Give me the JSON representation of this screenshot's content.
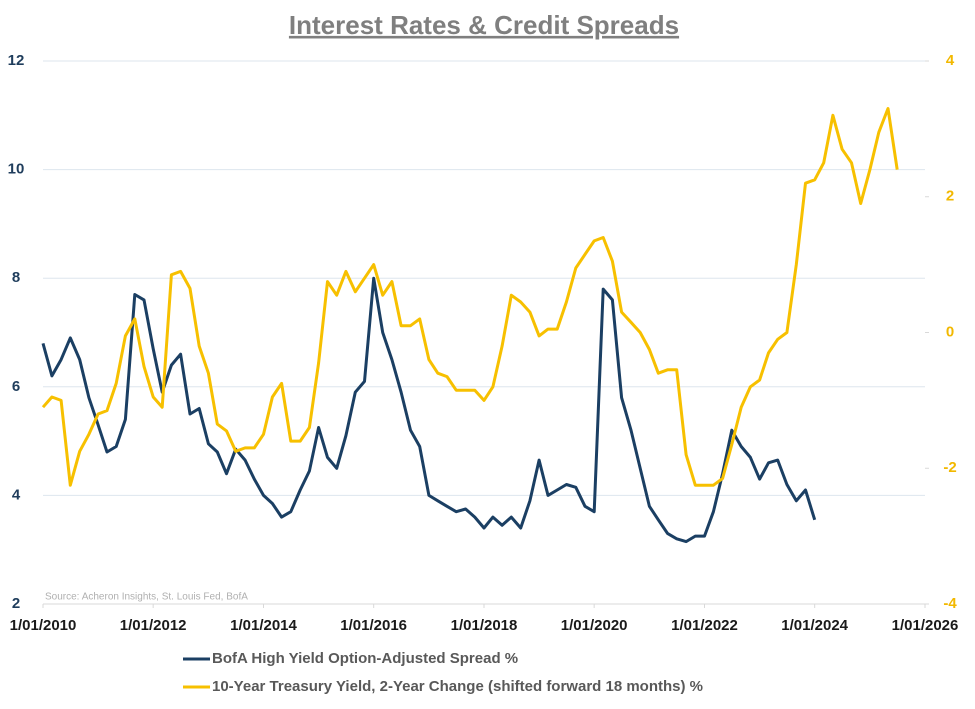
{
  "chart_data": {
    "type": "line",
    "title": "Interest Rates & Credit Spreads",
    "annotation": "Source: Acheron Insights, St. Louis Fed, BofA",
    "x": [
      "2010-01-01",
      "2010-03-01",
      "2010-05-01",
      "2010-07-01",
      "2010-09-01",
      "2010-11-01",
      "2011-01-01",
      "2011-03-01",
      "2011-05-01",
      "2011-07-01",
      "2011-09-01",
      "2011-11-01",
      "2012-01-01",
      "2012-03-01",
      "2012-05-01",
      "2012-07-01",
      "2012-09-01",
      "2012-11-01",
      "2013-01-01",
      "2013-03-01",
      "2013-05-01",
      "2013-07-01",
      "2013-09-01",
      "2013-11-01",
      "2014-01-01",
      "2014-03-01",
      "2014-05-01",
      "2014-07-01",
      "2014-09-01",
      "2014-11-01",
      "2015-01-01",
      "2015-03-01",
      "2015-05-01",
      "2015-07-01",
      "2015-09-01",
      "2015-11-01",
      "2016-01-01",
      "2016-03-01",
      "2016-05-01",
      "2016-07-01",
      "2016-09-01",
      "2016-11-01",
      "2017-01-01",
      "2017-03-01",
      "2017-05-01",
      "2017-07-01",
      "2017-09-01",
      "2017-11-01",
      "2018-01-01",
      "2018-03-01",
      "2018-05-01",
      "2018-07-01",
      "2018-09-01",
      "2018-11-01",
      "2019-01-01",
      "2019-03-01",
      "2019-05-01",
      "2019-07-01",
      "2019-09-01",
      "2019-11-01",
      "2020-01-01",
      "2020-03-01",
      "2020-05-01",
      "2020-07-01",
      "2020-09-01",
      "2020-11-01",
      "2021-01-01",
      "2021-03-01",
      "2021-05-01",
      "2021-07-01",
      "2021-09-01",
      "2021-11-01",
      "2022-01-01",
      "2022-03-01",
      "2022-05-01",
      "2022-07-01",
      "2022-09-01",
      "2022-11-01",
      "2023-01-01",
      "2023-03-01",
      "2023-05-01",
      "2023-07-01",
      "2023-09-01",
      "2023-11-01",
      "2024-01-01",
      "2024-03-01",
      "2024-05-01",
      "2024-07-01",
      "2024-09-01",
      "2024-11-01",
      "2025-01-01",
      "2025-03-01",
      "2025-05-01",
      "2025-07-01"
    ],
    "series": [
      {
        "name": "BofA High Yield Option-Adjusted Spread %",
        "color": "#1b3f63",
        "axis": "y",
        "values": [
          6.8,
          6.2,
          6.5,
          6.9,
          6.5,
          5.8,
          5.3,
          4.8,
          4.9,
          5.4,
          7.7,
          7.6,
          6.7,
          5.9,
          6.4,
          6.6,
          5.5,
          5.6,
          4.95,
          4.8,
          4.4,
          4.85,
          4.65,
          4.3,
          4.0,
          3.85,
          3.6,
          3.7,
          4.1,
          4.45,
          5.25,
          4.7,
          4.5,
          5.1,
          5.9,
          6.1,
          8.0,
          7.0,
          6.5,
          5.9,
          5.2,
          4.9,
          4.0,
          3.9,
          3.8,
          3.7,
          3.75,
          3.6,
          3.4,
          3.6,
          3.45,
          3.6,
          3.4,
          3.9,
          4.65,
          4.0,
          4.1,
          4.2,
          4.15,
          3.8,
          3.7,
          7.8,
          7.6,
          5.8,
          5.2,
          4.5,
          3.8,
          3.55,
          3.3,
          3.2,
          3.15,
          3.25,
          3.25,
          3.7,
          4.4,
          5.2,
          4.9,
          4.7,
          4.3,
          4.6,
          4.65,
          4.2,
          3.9,
          4.1,
          3.55,
          null,
          null,
          null,
          null,
          null,
          null,
          null,
          null,
          null
        ]
      },
      {
        "name": "10-Year Treasury Yield, 2-Year Change (shifted forward 18 months) %",
        "color": "#f7c000",
        "axis": "y2",
        "values": [
          -1.1,
          -0.95,
          -1.0,
          -2.25,
          -1.75,
          -1.5,
          -1.2,
          -1.15,
          -0.75,
          -0.05,
          0.2,
          -0.5,
          -0.95,
          -1.1,
          0.85,
          0.9,
          0.65,
          -0.2,
          -0.6,
          -1.35,
          -1.45,
          -1.75,
          -1.7,
          -1.7,
          -1.5,
          -0.95,
          -0.75,
          -1.6,
          -1.6,
          -1.4,
          -0.45,
          0.75,
          0.55,
          0.9,
          0.6,
          0.8,
          1.0,
          0.55,
          0.75,
          0.1,
          0.1,
          0.2,
          -0.4,
          -0.6,
          -0.65,
          -0.85,
          -0.85,
          -0.85,
          -1.0,
          -0.8,
          -0.2,
          0.55,
          0.45,
          0.3,
          -0.05,
          0.05,
          0.05,
          0.45,
          0.95,
          1.15,
          1.35,
          1.4,
          1.05,
          0.3,
          0.15,
          0.0,
          -0.25,
          -0.6,
          -0.55,
          -0.55,
          -1.8,
          -2.25,
          -2.25,
          -2.25,
          -2.15,
          -1.65,
          -1.1,
          -0.8,
          -0.7,
          -0.3,
          -0.1,
          0.0,
          1.0,
          2.2,
          2.25,
          2.5,
          3.2,
          2.7,
          2.5,
          1.9,
          2.4,
          2.95,
          3.3,
          2.4
        ]
      }
    ],
    "xlim": [
      "2010-01-01",
      "2026-01-01"
    ],
    "xticks": [
      {
        "value": "2010-01-01",
        "label": "1/01/2010"
      },
      {
        "value": "2012-01-01",
        "label": "1/01/2012"
      },
      {
        "value": "2014-01-01",
        "label": "1/01/2014"
      },
      {
        "value": "2016-01-01",
        "label": "1/01/2016"
      },
      {
        "value": "2018-01-01",
        "label": "1/01/2018"
      },
      {
        "value": "2020-01-01",
        "label": "1/01/2020"
      },
      {
        "value": "2022-01-01",
        "label": "1/01/2022"
      },
      {
        "value": "2024-01-01",
        "label": "1/01/2024"
      },
      {
        "value": "2026-01-01",
        "label": "1/01/2026"
      }
    ],
    "ylim": [
      2,
      12
    ],
    "yticks": [
      2,
      4,
      6,
      8,
      10,
      12
    ],
    "y2lim": [
      -4,
      4
    ],
    "y2ticks": [
      -4,
      -2,
      0,
      2,
      4
    ],
    "grid": true,
    "legend": "bottom"
  }
}
